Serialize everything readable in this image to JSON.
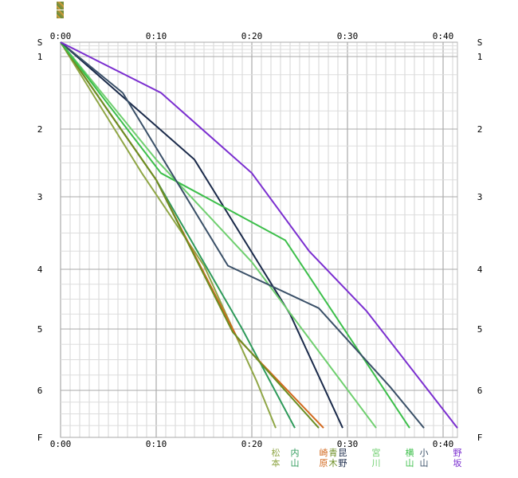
{
  "chart_data": {
    "type": "line",
    "x_ticks": [
      "0:00",
      "0:10",
      "0:20",
      "0:30",
      "0:40"
    ],
    "y_ticks": [
      "S",
      "1",
      "2",
      "3",
      "4",
      "5",
      "6",
      "F"
    ],
    "x_unit": "minutes",
    "xlim": [
      0,
      44
    ],
    "grid": true,
    "series": [
      {
        "name": "松本",
        "color": "#8fa646",
        "points": [
          [
            0,
            0
          ],
          [
            8.5,
            2.65
          ],
          [
            15,
            3.95
          ],
          [
            20.5,
            5.85
          ],
          [
            22.5,
            6.8
          ]
        ]
      },
      {
        "name": "内山",
        "color": "#2e9a5a",
        "points": [
          [
            0,
            0
          ],
          [
            10,
            2.75
          ],
          [
            19,
            5.0
          ],
          [
            24.5,
            6.8
          ]
        ]
      },
      {
        "name": "崎原",
        "color": "#d2691e",
        "points": [
          [
            0,
            0
          ],
          [
            10,
            2.75
          ],
          [
            18.5,
            5.15
          ],
          [
            27.5,
            6.8
          ]
        ]
      },
      {
        "name": "青木",
        "color": "#6b8e23",
        "points": [
          [
            0,
            0
          ],
          [
            10,
            2.75
          ],
          [
            18,
            5.05
          ],
          [
            27,
            6.8
          ]
        ]
      },
      {
        "name": "昆野",
        "color": "#1a2a4a",
        "points": [
          [
            0,
            0
          ],
          [
            14,
            2.45
          ],
          [
            24,
            4.75
          ],
          [
            29.5,
            6.8
          ]
        ]
      },
      {
        "name": "宮川",
        "color": "#6fcf6f",
        "points": [
          [
            0,
            0
          ],
          [
            10,
            2.45
          ],
          [
            20,
            3.9
          ],
          [
            33,
            6.8
          ]
        ]
      },
      {
        "name": "横山",
        "color": "#3cbf4a",
        "points": [
          [
            0,
            0
          ],
          [
            10.5,
            2.65
          ],
          [
            23.5,
            3.6
          ],
          [
            36.5,
            6.8
          ]
        ]
      },
      {
        "name": "小山",
        "color": "#3a5068",
        "points": [
          [
            0,
            0
          ],
          [
            6.5,
            1.5
          ],
          [
            17.5,
            3.95
          ],
          [
            27,
            4.65
          ],
          [
            34.5,
            5.95
          ],
          [
            38,
            6.8
          ]
        ]
      },
      {
        "name": "野坂",
        "color": "#7b2fd0",
        "points": [
          [
            0,
            0
          ],
          [
            10.5,
            1.5
          ],
          [
            20,
            2.65
          ],
          [
            26,
            3.75
          ],
          [
            32,
            4.7
          ],
          [
            41.5,
            6.8
          ]
        ]
      }
    ]
  }
}
